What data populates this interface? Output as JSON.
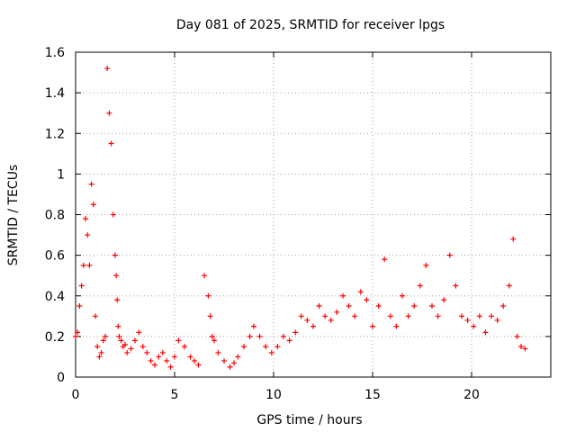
{
  "chart_data": {
    "type": "scatter",
    "title": "Day 081 of 2025, SRMTID for receiver lpgs",
    "xlabel": "GPS time / hours",
    "ylabel": "SRMTID / TECUs",
    "xlim": [
      0,
      24
    ],
    "ylim": [
      0,
      1.6
    ],
    "xticks": [
      0,
      5,
      10,
      15,
      20
    ],
    "yticks": [
      0,
      0.2,
      0.4,
      0.6,
      0.8,
      1,
      1.2,
      1.4,
      1.6
    ],
    "xtick_labels": [
      "0",
      "5",
      "10",
      "15",
      "20"
    ],
    "ytick_labels": [
      "0",
      "0.2",
      "0.4",
      "0.6",
      "0.8",
      "1",
      "1.2",
      "1.4",
      "1.6"
    ],
    "grid": true,
    "marker": "+",
    "color": "#ff0000",
    "series": [
      {
        "name": "lpgs",
        "x": [
          0.0,
          0.1,
          0.2,
          0.3,
          0.4,
          0.5,
          0.6,
          0.7,
          0.8,
          0.9,
          1.0,
          1.1,
          1.2,
          1.3,
          1.4,
          1.5,
          1.6,
          1.7,
          1.8,
          1.9,
          2.0,
          2.05,
          2.1,
          2.15,
          2.2,
          2.3,
          2.4,
          2.5,
          2.6,
          2.8,
          3.0,
          3.2,
          3.4,
          3.6,
          3.8,
          4.0,
          4.2,
          4.4,
          4.6,
          4.8,
          5.0,
          5.2,
          5.5,
          5.8,
          6.0,
          6.2,
          6.5,
          6.7,
          6.8,
          6.9,
          7.0,
          7.2,
          7.5,
          7.8,
          8.0,
          8.2,
          8.5,
          8.8,
          9.0,
          9.3,
          9.6,
          9.9,
          10.2,
          10.5,
          10.8,
          11.1,
          11.4,
          11.7,
          12.0,
          12.3,
          12.6,
          12.9,
          13.2,
          13.5,
          13.8,
          14.1,
          14.4,
          14.7,
          15.0,
          15.3,
          15.6,
          15.9,
          16.2,
          16.5,
          16.8,
          17.1,
          17.4,
          17.7,
          18.0,
          18.3,
          18.6,
          18.9,
          19.2,
          19.5,
          19.8,
          20.1,
          20.4,
          20.7,
          21.0,
          21.3,
          21.6,
          21.9,
          22.1,
          22.3,
          22.5,
          22.7
        ],
        "y": [
          0.2,
          0.22,
          0.35,
          0.45,
          0.55,
          0.78,
          0.7,
          0.55,
          0.95,
          0.85,
          0.3,
          0.15,
          0.1,
          0.12,
          0.18,
          0.2,
          1.52,
          1.3,
          1.15,
          0.8,
          0.6,
          0.5,
          0.38,
          0.25,
          0.2,
          0.18,
          0.15,
          0.16,
          0.12,
          0.14,
          0.18,
          0.22,
          0.15,
          0.12,
          0.08,
          0.06,
          0.1,
          0.12,
          0.08,
          0.05,
          0.1,
          0.18,
          0.15,
          0.1,
          0.08,
          0.06,
          0.5,
          0.4,
          0.3,
          0.2,
          0.18,
          0.12,
          0.08,
          0.05,
          0.07,
          0.1,
          0.15,
          0.2,
          0.25,
          0.2,
          0.15,
          0.12,
          0.15,
          0.2,
          0.18,
          0.22,
          0.3,
          0.28,
          0.25,
          0.35,
          0.3,
          0.28,
          0.32,
          0.4,
          0.35,
          0.3,
          0.42,
          0.38,
          0.25,
          0.35,
          0.58,
          0.3,
          0.25,
          0.4,
          0.3,
          0.35,
          0.45,
          0.55,
          0.35,
          0.3,
          0.38,
          0.6,
          0.45,
          0.3,
          0.28,
          0.25,
          0.3,
          0.22,
          0.3,
          0.28,
          0.35,
          0.45,
          0.68,
          0.2,
          0.15,
          0.14
        ]
      }
    ]
  }
}
